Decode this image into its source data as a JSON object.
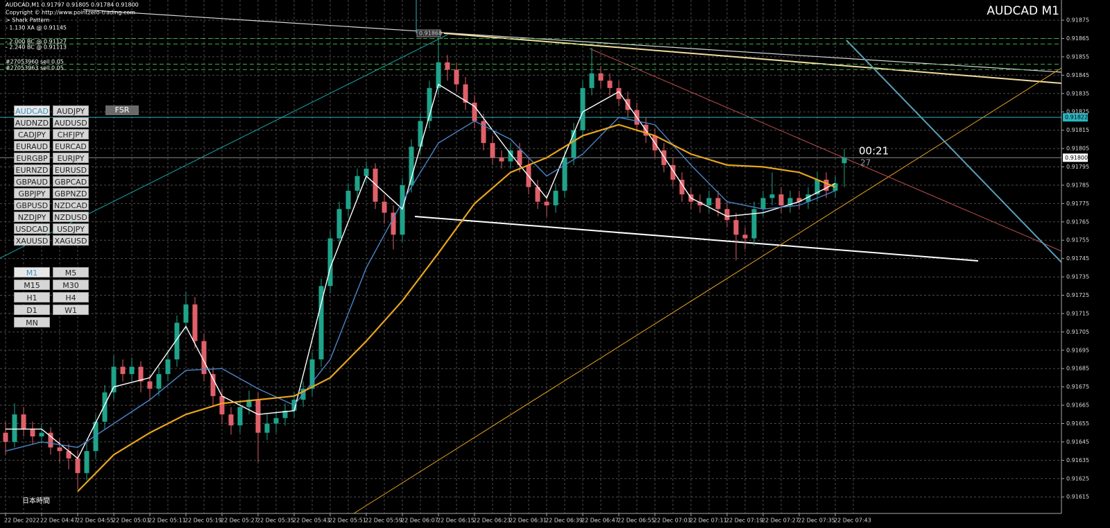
{
  "header": {
    "symbol_info": "AUDCAD,M1  0.91797 0.91805 0.91784 0.91800",
    "copyright": "Copyright © http://www.pointzero-trading.com",
    "pattern": "> Shark Pattern",
    "pattern_lines": [
      "- 1.130 XA @ 0.91145",
      "- 2.000 BC @ 0.91127",
      "- 2.240 BC @ 0.91113"
    ],
    "orders": [
      "#27053960 sell 0.05",
      "#27053963 sell 0.05"
    ]
  },
  "object_label": "0.91868",
  "timer": "00:21",
  "timer_sub": "27",
  "symbols": [
    "AUDCAD",
    "AUDJPY",
    "AUDNZD",
    "AUDUSD",
    "CADJPY",
    "CHFJPY",
    "EURAUD",
    "EURCAD",
    "EURGBP",
    "EURJPY",
    "EURNZD",
    "EURUSD",
    "GBPAUD",
    "GBPCAD",
    "GBPJPY",
    "GBPNZD",
    "GBPUSD",
    "NZDCAD",
    "NZDJPY",
    "NZDUSD",
    "USDCAD",
    "USDJPY",
    "XAUUSD",
    "XAGUSD"
  ],
  "fsr": "FSR",
  "timeframes": [
    "M1",
    "M5",
    "M15",
    "M30",
    "H1",
    "H4",
    "D1",
    "W1",
    "MN"
  ],
  "watermark": "日本時間",
  "chart_data": {
    "type": "candlestick",
    "title": "AUDCAD M1",
    "up_color": "#1fa38a",
    "down_color": "#e0606a",
    "ylim": [
      0.91606,
      0.91886
    ],
    "yticks": [
      0.91875,
      0.91865,
      0.91855,
      0.91845,
      0.91835,
      0.91825,
      0.91815,
      0.91805,
      0.91795,
      0.91785,
      0.91775,
      0.91765,
      0.91755,
      0.91745,
      0.91735,
      0.91725,
      0.91715,
      0.91705,
      0.91695,
      0.91685,
      0.91675,
      0.91665,
      0.91655,
      0.91645,
      0.91635,
      0.91625,
      0.91615
    ],
    "grid": true,
    "categories": [
      "22 Dec 2022",
      null,
      null,
      null,
      "22 Dec 04:47",
      null,
      null,
      null,
      "22 Dec 04:55",
      null,
      null,
      null,
      "22 Dec 05:03",
      null,
      null,
      null,
      "22 Dec 05:11",
      null,
      null,
      null,
      "22 Dec 05:19",
      null,
      null,
      null,
      "22 Dec 05:27",
      null,
      null,
      null,
      "22 Dec 05:35",
      null,
      null,
      null,
      "22 Dec 05:43",
      null,
      null,
      null,
      "22 Dec 05:51",
      null,
      null,
      null,
      "22 Dec 05:59",
      null,
      null,
      null,
      "22 Dec 06:07",
      null,
      null,
      null,
      "22 Dec 06:15",
      null,
      null,
      null,
      "22 Dec 06:23",
      null,
      null,
      null,
      "22 Dec 06:31",
      null,
      null,
      null,
      "22 Dec 06:39",
      null,
      null,
      null,
      "22 Dec 06:47",
      null,
      null,
      null,
      "22 Dec 06:55",
      null,
      null,
      null,
      "22 Dec 07:03",
      null,
      null,
      null,
      "22 Dec 07:11",
      null,
      null,
      null,
      "22 Dec 07:19",
      null,
      null,
      null,
      "22 Dec 07:27",
      null,
      null,
      null,
      "22 Dec 07:35",
      null,
      null,
      null,
      "22 Dec 07:43",
      null
    ],
    "ohlc": [
      [
        0.9165,
        0.91656,
        0.91638,
        0.91645
      ],
      [
        0.91645,
        0.91666,
        0.91642,
        0.9166
      ],
      [
        0.9166,
        0.91664,
        0.91648,
        0.91652
      ],
      [
        0.91652,
        0.91656,
        0.91644,
        0.91648
      ],
      [
        0.91648,
        0.91655,
        0.91644,
        0.9165
      ],
      [
        0.9165,
        0.91653,
        0.91638,
        0.91642
      ],
      [
        0.91642,
        0.91647,
        0.91634,
        0.9164
      ],
      [
        0.9164,
        0.91644,
        0.9163,
        0.91636
      ],
      [
        0.91636,
        0.9164,
        0.91619,
        0.91628
      ],
      [
        0.91628,
        0.91645,
        0.91624,
        0.9164
      ],
      [
        0.9164,
        0.9166,
        0.91636,
        0.91656
      ],
      [
        0.91656,
        0.91676,
        0.91652,
        0.91672
      ],
      [
        0.91672,
        0.91692,
        0.91668,
        0.91686
      ],
      [
        0.91686,
        0.9169,
        0.91678,
        0.91682
      ],
      [
        0.91682,
        0.91691,
        0.91678,
        0.91686
      ],
      [
        0.91686,
        0.91689,
        0.91672,
        0.91678
      ],
      [
        0.91678,
        0.91682,
        0.91668,
        0.91674
      ],
      [
        0.91674,
        0.91686,
        0.9167,
        0.91682
      ],
      [
        0.91682,
        0.91695,
        0.91678,
        0.9169
      ],
      [
        0.9169,
        0.91714,
        0.91686,
        0.9171
      ],
      [
        0.9171,
        0.91727,
        0.91706,
        0.9172
      ],
      [
        0.9172,
        0.91724,
        0.91696,
        0.917
      ],
      [
        0.917,
        0.91704,
        0.91678,
        0.91682
      ],
      [
        0.91682,
        0.91686,
        0.91664,
        0.9167
      ],
      [
        0.9167,
        0.91674,
        0.91655,
        0.9166
      ],
      [
        0.9166,
        0.91664,
        0.91649,
        0.91654
      ],
      [
        0.91654,
        0.91668,
        0.9165,
        0.91664
      ],
      [
        0.91664,
        0.91673,
        0.9166,
        0.91668
      ],
      [
        0.91668,
        0.91672,
        0.91634,
        0.9165
      ],
      [
        0.9165,
        0.9166,
        0.91646,
        0.91655
      ],
      [
        0.91655,
        0.91662,
        0.9165,
        0.91658
      ],
      [
        0.91658,
        0.91666,
        0.91654,
        0.91662
      ],
      [
        0.91662,
        0.91672,
        0.91658,
        0.91668
      ],
      [
        0.91668,
        0.91678,
        0.91664,
        0.91674
      ],
      [
        0.91674,
        0.91694,
        0.9167,
        0.9169
      ],
      [
        0.9169,
        0.91734,
        0.91686,
        0.9173
      ],
      [
        0.9173,
        0.9176,
        0.91726,
        0.91756
      ],
      [
        0.91756,
        0.91776,
        0.91752,
        0.91772
      ],
      [
        0.91772,
        0.91786,
        0.91768,
        0.91782
      ],
      [
        0.91782,
        0.91794,
        0.91778,
        0.9179
      ],
      [
        0.9179,
        0.91798,
        0.91786,
        0.91794
      ],
      [
        0.91794,
        0.91797,
        0.91772,
        0.91776
      ],
      [
        0.91776,
        0.9178,
        0.91764,
        0.9177
      ],
      [
        0.9177,
        0.91774,
        0.9175,
        0.91758
      ],
      [
        0.91758,
        0.91789,
        0.91754,
        0.91785
      ],
      [
        0.91785,
        0.9181,
        0.91781,
        0.91806
      ],
      [
        0.91806,
        0.91824,
        0.91802,
        0.9182
      ],
      [
        0.9182,
        0.91842,
        0.91816,
        0.91838
      ],
      [
        0.91838,
        0.91867,
        0.91834,
        0.91852
      ],
      [
        0.91852,
        0.91856,
        0.91842,
        0.91848
      ],
      [
        0.91848,
        0.91852,
        0.91836,
        0.9184
      ],
      [
        0.9184,
        0.91844,
        0.91826,
        0.9183
      ],
      [
        0.9183,
        0.91834,
        0.91816,
        0.9182
      ],
      [
        0.9182,
        0.91824,
        0.91804,
        0.91808
      ],
      [
        0.91808,
        0.91812,
        0.91796,
        0.918
      ],
      [
        0.918,
        0.91804,
        0.91794,
        0.91798
      ],
      [
        0.91798,
        0.91808,
        0.91794,
        0.91804
      ],
      [
        0.91804,
        0.91808,
        0.91792,
        0.91796
      ],
      [
        0.91796,
        0.918,
        0.9178,
        0.91784
      ],
      [
        0.91784,
        0.91788,
        0.91772,
        0.91776
      ],
      [
        0.91776,
        0.9178,
        0.91768,
        0.91774
      ],
      [
        0.91774,
        0.91786,
        0.9177,
        0.91782
      ],
      [
        0.91782,
        0.91804,
        0.91778,
        0.918
      ],
      [
        0.918,
        0.91819,
        0.91796,
        0.91815
      ],
      [
        0.91815,
        0.91842,
        0.91811,
        0.91838
      ],
      [
        0.91838,
        0.9186,
        0.91834,
        0.91846
      ],
      [
        0.91846,
        0.9185,
        0.91838,
        0.91842
      ],
      [
        0.91842,
        0.91846,
        0.91834,
        0.91838
      ],
      [
        0.91838,
        0.91842,
        0.91828,
        0.91832
      ],
      [
        0.91832,
        0.91836,
        0.91822,
        0.91826
      ],
      [
        0.91826,
        0.9183,
        0.91814,
        0.91818
      ],
      [
        0.91818,
        0.91822,
        0.91808,
        0.91812
      ],
      [
        0.91812,
        0.91816,
        0.918,
        0.91804
      ],
      [
        0.91804,
        0.91808,
        0.91792,
        0.91796
      ],
      [
        0.91796,
        0.918,
        0.91784,
        0.91788
      ],
      [
        0.91788,
        0.91792,
        0.91776,
        0.9178
      ],
      [
        0.9178,
        0.91784,
        0.91772,
        0.91776
      ],
      [
        0.91776,
        0.9178,
        0.9177,
        0.91774
      ],
      [
        0.91774,
        0.91782,
        0.9177,
        0.91778
      ],
      [
        0.91778,
        0.91782,
        0.91768,
        0.91772
      ],
      [
        0.91772,
        0.91776,
        0.91762,
        0.91766
      ],
      [
        0.91766,
        0.9177,
        0.91744,
        0.91758
      ],
      [
        0.91758,
        0.91762,
        0.9175,
        0.91756
      ],
      [
        0.91756,
        0.91776,
        0.91752,
        0.91772
      ],
      [
        0.91772,
        0.91782,
        0.91768,
        0.91778
      ],
      [
        0.91778,
        0.91792,
        0.91774,
        0.9178
      ],
      [
        0.9178,
        0.91784,
        0.9177,
        0.91774
      ],
      [
        0.91774,
        0.91782,
        0.9177,
        0.91778
      ],
      [
        0.91778,
        0.91782,
        0.91772,
        0.91776
      ],
      [
        0.91776,
        0.91784,
        0.91772,
        0.9178
      ],
      [
        0.9178,
        0.91792,
        0.91776,
        0.91788
      ],
      [
        0.91788,
        0.91792,
        0.91778,
        0.91782
      ],
      [
        0.91782,
        0.9179,
        0.91778,
        0.91786
      ],
      [
        0.91797,
        0.91805,
        0.91784,
        0.918
      ]
    ],
    "ma_lines": [
      {
        "color": "#ffffff",
        "values": [
          0.91652,
          0.91652,
          0.91636,
          0.91675,
          0.9168,
          0.91708,
          0.9167,
          0.9166,
          0.91662,
          0.9174,
          0.9179,
          0.91772,
          0.9184,
          0.91828,
          0.91802,
          0.91778,
          0.91825,
          0.91836,
          0.91808,
          0.91778,
          0.91768,
          0.9177,
          0.91776,
          0.91786
        ]
      },
      {
        "color": "#4a86c8",
        "values": [
          0.9164,
          0.91645,
          0.91642,
          0.91655,
          0.91668,
          0.91684,
          0.91685,
          0.91674,
          0.91665,
          0.9169,
          0.9174,
          0.91776,
          0.91808,
          0.9182,
          0.9181,
          0.9179,
          0.91802,
          0.91822,
          0.91818,
          0.91796,
          0.91776,
          0.91772,
          0.91774,
          0.91782
        ]
      },
      {
        "color": "#e8a420",
        "values": [
          null,
          null,
          0.91618,
          0.91638,
          0.9165,
          0.9166,
          0.91666,
          0.91668,
          0.9167,
          0.9168,
          0.917,
          0.91722,
          0.91748,
          0.91775,
          0.91792,
          0.918,
          0.91812,
          0.91818,
          0.91812,
          0.91802,
          0.91796,
          0.91795,
          0.91792,
          0.91784
        ]
      }
    ],
    "levels": [
      {
        "value": 0.91865,
        "color": "#3cb043"
      },
      {
        "value": 0.91862,
        "color": "#3cb043"
      },
      {
        "value": 0.91851,
        "color": "#3cb043"
      },
      {
        "value": 0.91848,
        "color": "#3cb043"
      }
    ],
    "price_lines": [
      {
        "value": 0.91822,
        "label": "0.91822",
        "color": "#2bb5c0"
      },
      {
        "value": 0.918,
        "label": "0.91800",
        "color": "#8c8c8c"
      }
    ]
  }
}
